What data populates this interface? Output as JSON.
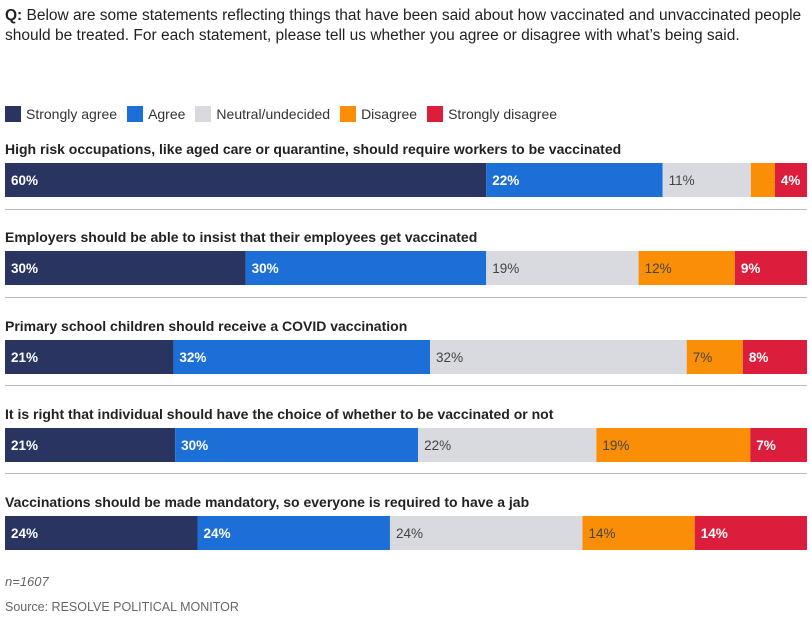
{
  "question": {
    "prefix": "Q:",
    "text": " Below are some statements reflecting things that have been said about how vaccinated and unvaccinated people should be treated. For each statement, please tell us whether you agree or disagree with what’s being said."
  },
  "chart_data": {
    "type": "bar",
    "orientation": "horizontal",
    "stacked": true,
    "unit": "%",
    "legend_placement": "top-left",
    "categories": [
      "High risk occupations, like aged care or quarantine, should require workers to be vaccinated",
      "Employers should be able to insist that their employees get vaccinated",
      "Primary school children should receive a COVID vaccination",
      "It is right that individual should have the choice of whether to be vaccinated or not",
      "Vaccinations should be made mandatory, so everyone is required to have a jab"
    ],
    "series": [
      {
        "name": "Strongly agree",
        "color": "#2a3461",
        "values": [
          60,
          30,
          21,
          21,
          24
        ]
      },
      {
        "name": "Agree",
        "color": "#1c6fd6",
        "values": [
          22,
          30,
          32,
          30,
          24
        ]
      },
      {
        "name": "Neutral/undecided",
        "color": "#d9dae0",
        "values": [
          11,
          19,
          32,
          22,
          24
        ]
      },
      {
        "name": "Disagree",
        "color": "#fa8e06",
        "values": [
          3,
          12,
          7,
          19,
          14
        ]
      },
      {
        "name": "Strongly disagree",
        "color": "#dc1d3b",
        "values": [
          4,
          9,
          8,
          7,
          14
        ]
      }
    ],
    "hidden_labels": [
      [
        false,
        false,
        false,
        true,
        false
      ],
      [
        false,
        false,
        false,
        false,
        false
      ],
      [
        false,
        false,
        false,
        false,
        false
      ],
      [
        false,
        false,
        false,
        false,
        false
      ],
      [
        false,
        false,
        false,
        false,
        false
      ]
    ]
  },
  "footer": {
    "note": "n=1607",
    "source": "Source: RESOLVE POLITICAL MONITOR"
  }
}
